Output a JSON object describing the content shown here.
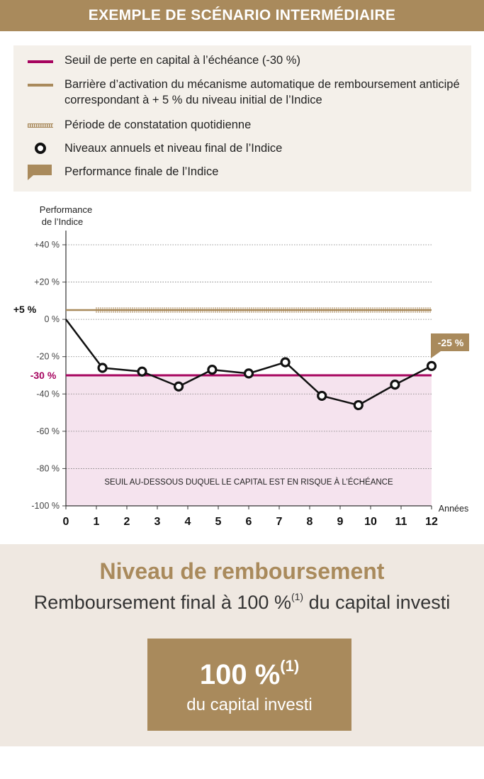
{
  "header": {
    "title": "EXEMPLE DE SCÉNARIO INTERMÉDIAIRE"
  },
  "legend": {
    "items": [
      {
        "symbol": "red-line",
        "text": "Seuil de perte en capital à l’échéance (-30 %)"
      },
      {
        "symbol": "gold-line",
        "text": "Barrière d’activation du mécanisme automatique de remboursement anticipé correspondant à + 5 % du niveau initial de l’Indice"
      },
      {
        "symbol": "hatched-line",
        "text": "Période de constatation quotidienne"
      },
      {
        "symbol": "circle-marker",
        "text": "Niveaux annuels et niveau final de l’Indice"
      },
      {
        "symbol": "flag-label",
        "text": "Performance finale de l’Indice"
      }
    ]
  },
  "colors": {
    "gold": "#a98a5c",
    "loss_threshold": "#a6045f",
    "risk_zone": "#f5e3ee",
    "line": "#111111"
  },
  "chart_data": {
    "type": "line",
    "ylabel_line1": "Performance",
    "ylabel_line2": "de l’Indice",
    "xlabel": "Années",
    "ylim": [
      -100,
      45
    ],
    "xlim": [
      0,
      12
    ],
    "y_ticks": [
      {
        "value": 40,
        "label": "+40 %"
      },
      {
        "value": 20,
        "label": "+20 %"
      },
      {
        "value": 0,
        "label": "0 %"
      },
      {
        "value": -20,
        "label": "-20 %"
      },
      {
        "value": -40,
        "label": "-40 %"
      },
      {
        "value": -60,
        "label": "-60 %"
      },
      {
        "value": -80,
        "label": "-80 %"
      },
      {
        "value": -100,
        "label": "-100 %"
      }
    ],
    "x_ticks": [
      "0",
      "1",
      "2",
      "3",
      "4",
      "5",
      "6",
      "7",
      "8",
      "9",
      "10",
      "11",
      "12"
    ],
    "grid": "dotted horizontal",
    "barrier": {
      "value": 5,
      "label": "+5 %"
    },
    "loss_threshold": {
      "value": -30,
      "label": "-30 %"
    },
    "risk_zone_label": "SEUIL AU-DESSOUS DUQUEL LE CAPITAL EST EN RISQUE À L’ÉCHÉANCE",
    "observation_period": [
      1,
      12
    ],
    "series": [
      {
        "x": [
          0,
          1.2,
          2.5,
          3.7,
          4.8,
          6,
          7.2,
          8.4,
          9.6,
          10.8,
          12
        ],
        "y": [
          0,
          -26,
          -28,
          -36,
          -27,
          -29,
          -23,
          -41,
          -46,
          -35,
          -25
        ]
      }
    ],
    "markers_from_index": 1,
    "final_label": "-25 %"
  },
  "bottom": {
    "title": "Niveau de remboursement",
    "subtitle": "Remboursement final à 100 %",
    "subtitle_sup": "(1)",
    "subtitle_end": " du capital investi",
    "box_value": "100 %",
    "box_sup": "(1)",
    "box_text": "du capital investi"
  }
}
